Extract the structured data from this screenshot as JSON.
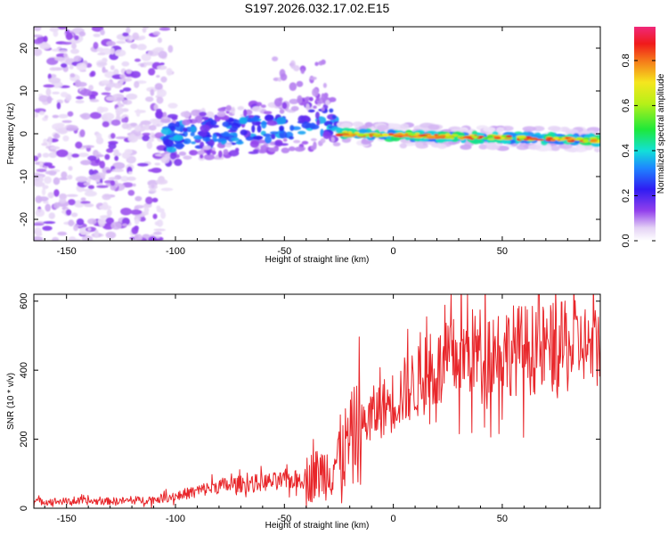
{
  "title": "S197.2026.032.17.02.E15",
  "chart_data": [
    {
      "type": "heatmap",
      "xlabel": "Height of straight line (km)",
      "ylabel": "Frequency (Hz)",
      "xlim": [
        -165,
        95
      ],
      "ylim": [
        -25,
        25
      ],
      "xticks": [
        -150,
        -100,
        -50,
        0,
        50
      ],
      "yticks": [
        -20,
        -10,
        0,
        10,
        20
      ],
      "colorbar": {
        "label": "Normalized spectral amplitude",
        "range": [
          0,
          0.95
        ],
        "ticks": [
          0.0,
          0.2,
          0.4,
          0.6,
          0.8
        ]
      },
      "features": [
        {
          "name": "scattered noise",
          "x_range": [
            -165,
            -105
          ],
          "freq_range": [
            -25,
            25
          ],
          "amplitude": 0.1
        },
        {
          "name": "broad signal",
          "x_range": [
            -105,
            -25
          ],
          "freq_center_start": -1,
          "freq_center_end": 3,
          "amplitude": 0.25
        },
        {
          "name": "narrow line",
          "x_range": [
            -25,
            95
          ],
          "freq_center_start": 0,
          "freq_center_end": -1.5,
          "amplitude": 0.8
        }
      ]
    },
    {
      "type": "line",
      "xlabel": "Height of straight line (km)",
      "ylabel": "SNR (10 * v/v)",
      "xlim": [
        -165,
        95
      ],
      "ylim": [
        0,
        620
      ],
      "xticks": [
        -150,
        -100,
        -50,
        0,
        50
      ],
      "yticks": [
        0,
        200,
        400,
        600
      ],
      "series": [
        {
          "name": "SNR",
          "color": "#e8262a",
          "x": [
            -165,
            -150,
            -135,
            -120,
            -110,
            -100,
            -90,
            -80,
            -70,
            -60,
            -50,
            -40,
            -30,
            -25,
            -20,
            -15,
            -10,
            -5,
            0,
            5,
            10,
            15,
            20,
            25,
            30,
            35,
            40,
            50,
            60,
            70,
            80,
            85,
            88,
            90,
            95
          ],
          "values": [
            20,
            20,
            20,
            22,
            25,
            35,
            50,
            65,
            70,
            75,
            80,
            85,
            110,
            150,
            190,
            230,
            270,
            290,
            310,
            340,
            360,
            380,
            400,
            420,
            440,
            450,
            455,
            460,
            460,
            460,
            465,
            470,
            480,
            460,
            470
          ]
        }
      ]
    }
  ]
}
